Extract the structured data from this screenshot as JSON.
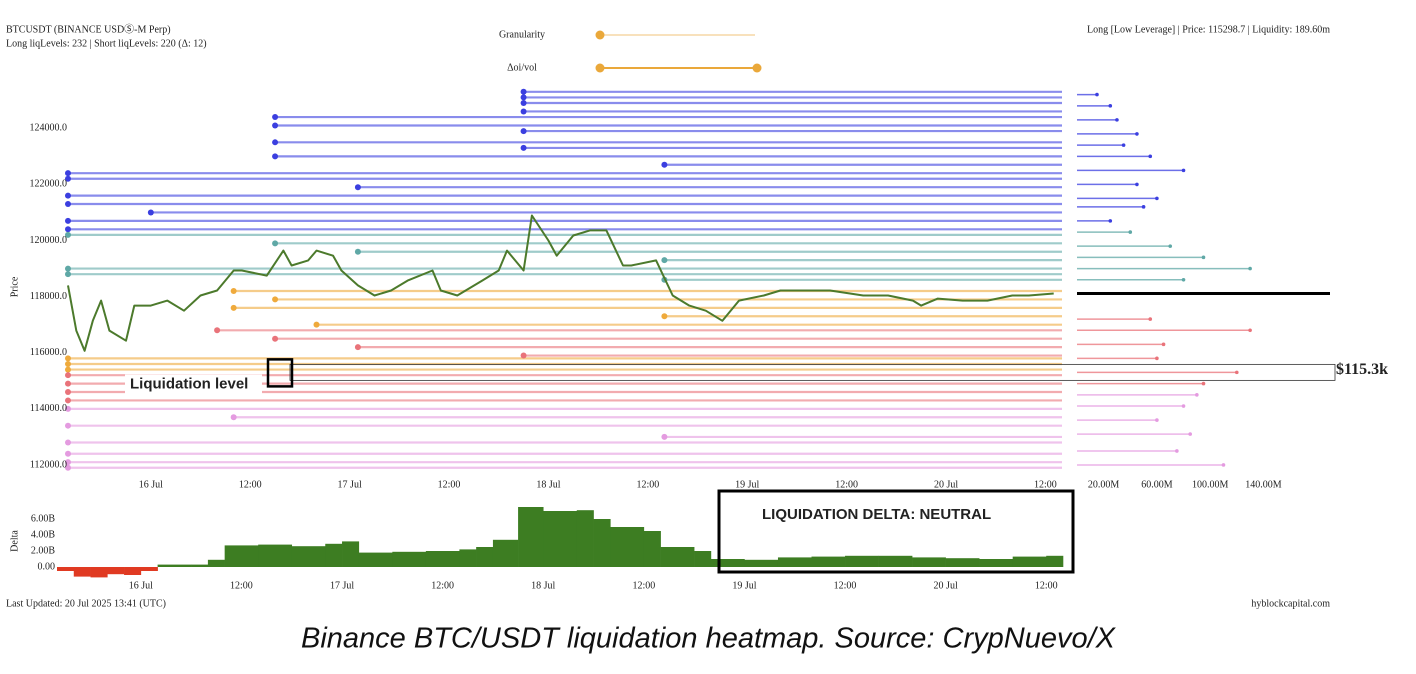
{
  "header": {
    "symbol": "BTCUSDT (BINANCE USDⓈ-M Perp)",
    "levels": "Long liqLevels: 232 | Short liqLevels: 220 (Δ: 12)",
    "info": "Long [Low Leverage] | Price: 115298.7 | Liquidity: 189.60m"
  },
  "controls": [
    "Granularity",
    "Δoi/vol"
  ],
  "footer": {
    "updated": "Last Updated: 20 Jul 2025 13:41 (UTC)",
    "source": "hyblockcapital.com"
  },
  "caption": "Binance BTC/USDT liquidation heatmap. Source: CrypNuevo/X",
  "chart_data": [
    {
      "type": "line",
      "y_label": "Price",
      "xlim": [
        0,
        120
      ],
      "ylim": [
        111500,
        125400
      ],
      "xticks": [
        {
          "value": 10,
          "label": "16 Jul"
        },
        {
          "value": 22,
          "label": "12:00"
        },
        {
          "value": 34,
          "label": "17 Jul"
        },
        {
          "value": 46,
          "label": "12:00"
        },
        {
          "value": 58,
          "label": "18 Jul"
        },
        {
          "value": 70,
          "label": "12:00"
        },
        {
          "value": 82,
          "label": "19 Jul"
        },
        {
          "value": 94,
          "label": "12:00"
        },
        {
          "value": 106,
          "label": "20 Jul"
        },
        {
          "value": 118,
          "label": "12:00"
        }
      ],
      "yticks": [
        {
          "value": 112000,
          "label": "112000.0"
        },
        {
          "value": 114000,
          "label": "114000.0"
        },
        {
          "value": 116000,
          "label": "116000.0"
        },
        {
          "value": 118000,
          "label": "118000.0"
        },
        {
          "value": 120000,
          "label": "120000.0"
        },
        {
          "value": 122000,
          "label": "122000.0"
        },
        {
          "value": 124000,
          "label": "124000.0"
        }
      ],
      "series": [
        {
          "color": "#4c7a2c",
          "x": [
            0,
            1,
            2,
            3,
            4,
            5,
            7,
            8,
            10,
            12,
            14,
            16,
            18,
            20,
            21,
            24,
            26,
            27,
            29,
            30,
            32,
            33,
            35,
            37,
            39,
            41,
            44,
            45,
            47,
            50,
            52,
            53,
            55,
            56,
            58,
            59,
            61,
            63,
            65,
            67,
            68,
            71,
            73,
            75,
            77,
            79,
            81,
            84,
            86,
            88,
            92,
            96,
            99,
            102,
            103,
            105,
            108,
            111,
            114,
            116,
            119
          ],
          "values": [
            118400,
            116790,
            116070,
            117140,
            117860,
            116790,
            116430,
            117680,
            117680,
            117860,
            117500,
            118040,
            118220,
            118930,
            118930,
            118750,
            119640,
            119110,
            119290,
            119640,
            119460,
            118930,
            118400,
            118040,
            118220,
            118570,
            118930,
            118220,
            118040,
            118570,
            118930,
            119640,
            118930,
            120890,
            120000,
            119460,
            120180,
            120360,
            120360,
            119110,
            119110,
            119290,
            118040,
            117680,
            117500,
            117140,
            117860,
            118040,
            118220,
            118220,
            118220,
            118040,
            118040,
            117860,
            117680,
            117930,
            117860,
            117860,
            118040,
            118040,
            118110
          ]
        }
      ],
      "level_groups": [
        {
          "color": "#3b3fe0",
          "prices": [
            125300,
            125100,
            124900,
            124600,
            124400,
            124100,
            123900,
            123500,
            123300,
            123000,
            122700,
            122400,
            122200,
            121900,
            121600,
            121300,
            121000,
            120700,
            120400
          ],
          "starts": [
            55,
            55,
            55,
            55,
            25,
            25,
            55,
            25,
            55,
            25,
            72,
            0,
            0,
            35,
            0,
            0,
            10,
            0,
            0
          ]
        },
        {
          "color": "#5fa8a6",
          "prices": [
            120200,
            119900,
            119600,
            119300,
            119000,
            118800,
            118600
          ],
          "starts": [
            0,
            25,
            35,
            72,
            0,
            0,
            72
          ]
        },
        {
          "color": "#efaa3c",
          "prices": [
            118200,
            117900,
            117600,
            117300,
            117000,
            115800,
            115600,
            115400
          ],
          "starts": [
            20,
            25,
            20,
            72,
            30,
            0,
            0,
            0
          ]
        },
        {
          "color": "#e9737a",
          "prices": [
            116800,
            116500,
            116200,
            115900,
            115200,
            114900,
            114600,
            114300
          ],
          "starts": [
            18,
            25,
            35,
            55,
            0,
            0,
            0,
            0
          ]
        },
        {
          "color": "#e49be0",
          "prices": [
            114000,
            113700,
            113400,
            113000,
            112800,
            112400,
            112100,
            111900
          ],
          "starts": [
            0,
            20,
            0,
            72,
            0,
            0,
            0,
            0
          ]
        }
      ],
      "annotation": {
        "text": "Liquidation level",
        "value": 115300,
        "value_label": "$115.3k"
      }
    },
    {
      "type": "hbar",
      "xlim": [
        0,
        190
      ],
      "xticks": [
        {
          "value": 20,
          "label": "20.00M"
        },
        {
          "value": 60,
          "label": "60.00M"
        },
        {
          "value": 100,
          "label": "100.00M"
        },
        {
          "value": 140,
          "label": "140.00M"
        }
      ],
      "series": [
        {
          "color": "#3b3fe0",
          "prices": [
            125200,
            124800,
            124300,
            123800,
            123400,
            123000,
            122500,
            122000,
            121500,
            121200,
            120700
          ],
          "values": [
            15,
            25,
            30,
            45,
            35,
            55,
            80,
            45,
            60,
            50,
            25
          ]
        },
        {
          "color": "#5fa8a6",
          "prices": [
            120300,
            119800,
            119400,
            119000,
            118600
          ],
          "values": [
            40,
            70,
            95,
            130,
            80
          ]
        },
        {
          "color": "#e9737a",
          "prices": [
            117200,
            116800,
            116300,
            115800,
            115300,
            114900
          ],
          "values": [
            55,
            130,
            65,
            60,
            120,
            95
          ]
        },
        {
          "color": "#e49be0",
          "prices": [
            114500,
            114100,
            113600,
            113100,
            112500,
            112000
          ],
          "values": [
            90,
            80,
            60,
            85,
            75,
            110
          ]
        }
      ],
      "current_price": 118110
    },
    {
      "type": "area",
      "y_label": "Delta",
      "xlim": [
        0,
        120
      ],
      "ylim": [
        -1.9,
        8.4
      ],
      "xticks": [
        {
          "value": 10,
          "label": "16 Jul"
        },
        {
          "value": 22,
          "label": "12:00"
        },
        {
          "value": 34,
          "label": "17 Jul"
        },
        {
          "value": 46,
          "label": "12:00"
        },
        {
          "value": 58,
          "label": "18 Jul"
        },
        {
          "value": 70,
          "label": "12:00"
        },
        {
          "value": 82,
          "label": "19 Jul"
        },
        {
          "value": 94,
          "label": "12:00"
        },
        {
          "value": 106,
          "label": "20 Jul"
        },
        {
          "value": 118,
          "label": "12:00"
        }
      ],
      "yticks": [
        {
          "value": 0,
          "label": "0.00"
        },
        {
          "value": 2,
          "label": "2.00B"
        },
        {
          "value": 4,
          "label": "4.00B"
        },
        {
          "value": 6,
          "label": "6.00B"
        }
      ],
      "color_positive": "#3d7d22",
      "color_negative": "#e03a22",
      "x": [
        0,
        2,
        4,
        6,
        8,
        10,
        12,
        16,
        18,
        20,
        24,
        28,
        32,
        34,
        36,
        40,
        44,
        48,
        50,
        52,
        55,
        58,
        62,
        64,
        66,
        70,
        72,
        76,
        78,
        82,
        86,
        90,
        94,
        98,
        102,
        106,
        110,
        114,
        118
      ],
      "values": [
        -0.5,
        -1.2,
        -1.3,
        -0.9,
        -1.0,
        -0.5,
        0.3,
        0.3,
        0.9,
        2.7,
        2.8,
        2.6,
        2.9,
        3.2,
        1.8,
        1.9,
        2.0,
        2.2,
        2.5,
        3.4,
        7.5,
        7.0,
        7.1,
        6.0,
        5.0,
        4.5,
        2.5,
        2.0,
        1.0,
        0.9,
        1.2,
        1.3,
        1.4,
        1.4,
        1.2,
        1.1,
        1.0,
        1.3,
        1.4
      ],
      "annotation": "LIQUIDATION DELTA: NEUTRAL"
    }
  ]
}
